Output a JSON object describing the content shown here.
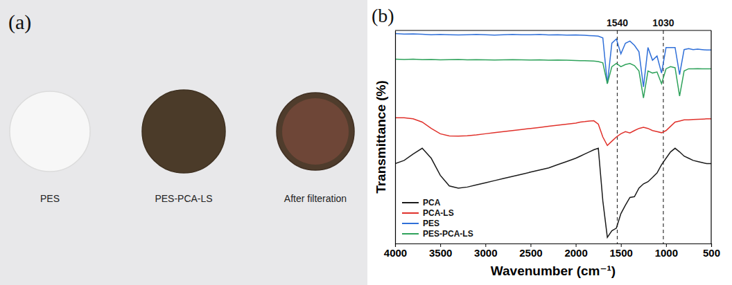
{
  "photo": {
    "letter": "(a)",
    "samples": [
      "PES",
      "PES-PCA-LS",
      "After filteration"
    ]
  },
  "chart_panel": {
    "letter": "(b)"
  },
  "chart_data": {
    "type": "line",
    "x_label": "Wavenumber (cm⁻¹)",
    "y_label": "Transmittance (%)",
    "x": [
      4000,
      3900,
      3800,
      3700,
      3600,
      3500,
      3400,
      3300,
      3200,
      3100,
      3000,
      2900,
      2800,
      2700,
      2600,
      2500,
      2400,
      2300,
      2200,
      2100,
      2000,
      1950,
      1900,
      1850,
      1800,
      1750,
      1700,
      1650,
      1600,
      1550,
      1500,
      1450,
      1400,
      1350,
      1300,
      1250,
      1200,
      1150,
      1100,
      1050,
      1000,
      950,
      900,
      850,
      800,
      750,
      700,
      650,
      600,
      550,
      500
    ],
    "series": [
      {
        "name": "PCA",
        "color": "#1a1a1a",
        "values": [
          37.5,
          39,
          42,
          44.7,
          40,
          32,
          27,
          26,
          26.5,
          27.5,
          28.5,
          29.5,
          30.5,
          31.5,
          32.5,
          33.5,
          34.5,
          35.5,
          37,
          38.5,
          40,
          41,
          42,
          43,
          44,
          44.7,
          20,
          2.9,
          6,
          7.2,
          14,
          18,
          21.6,
          22,
          26,
          28,
          29,
          31,
          33.1,
          37,
          40,
          43,
          44.7,
          43,
          41,
          40,
          39,
          38.5,
          38,
          37.5,
          37.5
        ]
      },
      {
        "name": "PCA-LS",
        "color": "#e0302a",
        "values": [
          59,
          59,
          58.5,
          57,
          54,
          51.5,
          50.5,
          50.4,
          50.6,
          51,
          51.5,
          52,
          52.5,
          53,
          53.5,
          54,
          54.5,
          55,
          55.5,
          56,
          56.5,
          57,
          57.2,
          57.5,
          57.6,
          56,
          50,
          46,
          48,
          50,
          51.5,
          52.5,
          51.9,
          53,
          54,
          54.5,
          54,
          53,
          52.5,
          52,
          53,
          55,
          57,
          57.5,
          58,
          58,
          58.2,
          58.3,
          58.4,
          58.5,
          58.5
        ]
      },
      {
        "name": "PES",
        "color": "#2f6fd8",
        "values": [
          98.5,
          98.3,
          98.4,
          98.2,
          98,
          98.1,
          98,
          97.9,
          98,
          98.1,
          98,
          97.8,
          98,
          98.1,
          98,
          98,
          98.1,
          97.9,
          98,
          97.8,
          97.9,
          97.8,
          97.7,
          97.6,
          97.5,
          97.3,
          96.5,
          75,
          94,
          96,
          89,
          94,
          95,
          93,
          90,
          73.5,
          92,
          86,
          88,
          80,
          92,
          92,
          92,
          79.3,
          91,
          91.5,
          91,
          91.2,
          91,
          90.8,
          90.8
        ]
      },
      {
        "name": "PES-PCA-LS",
        "color": "#2ea25a",
        "values": [
          86.5,
          86.4,
          86.5,
          86.3,
          86.4,
          86.2,
          86.3,
          86.4,
          86.2,
          86.3,
          86.2,
          86.1,
          86.2,
          86.3,
          86.2,
          86.1,
          86.2,
          86,
          86.1,
          86,
          85.9,
          85.8,
          85.8,
          85.7,
          85.6,
          85.4,
          84.8,
          75,
          83,
          84.5,
          83,
          84,
          84.5,
          83.5,
          81,
          68.3,
          81,
          80,
          80.5,
          75,
          82,
          83,
          82.5,
          69.2,
          81,
          82,
          82,
          82.1,
          82,
          82,
          82
        ]
      }
    ],
    "xlim": [
      4000,
      500
    ],
    "xticks": [
      4000,
      3500,
      3000,
      2500,
      2000,
      1500,
      1000,
      500
    ],
    "ylim": [
      0,
      100
    ],
    "tick_labels": "x",
    "grid": false,
    "legend": "lower left",
    "annotations": [
      {
        "x": 1540,
        "text": "1540"
      },
      {
        "x": 1030,
        "text": "1030"
      }
    ]
  }
}
